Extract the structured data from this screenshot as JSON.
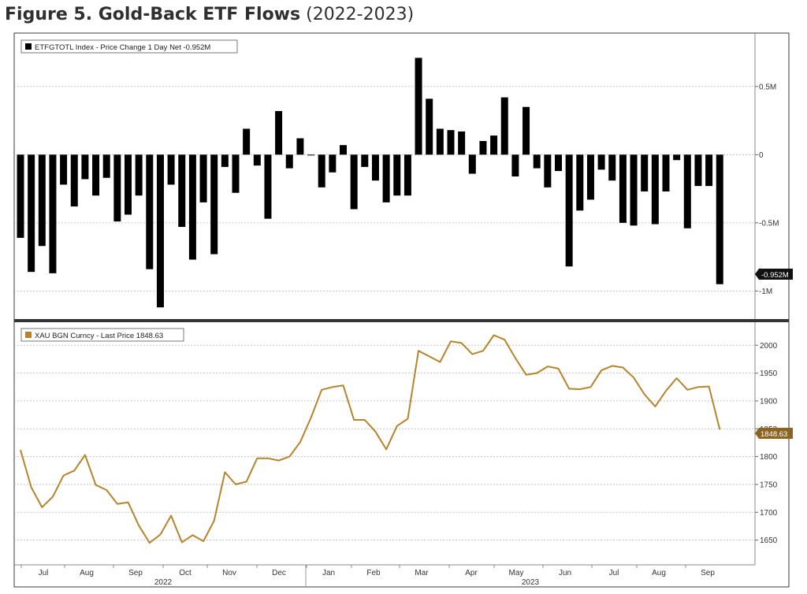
{
  "figure": {
    "title_bold": "Figure 5. Gold-Back ETF Flows",
    "title_years": "(2022-2023)"
  },
  "chart_data": [
    {
      "type": "bar",
      "legend": "ETFGTOTL Index - Price Change 1 Day Net -0.952M",
      "last_value_label": "-0.952M",
      "color": "#000000",
      "y_ticks": [
        {
          "value": 0.5,
          "label": "0.5M"
        },
        {
          "value": 0,
          "label": "0"
        },
        {
          "value": -0.5,
          "label": "-0.5M"
        },
        {
          "value": -1,
          "label": "-1M"
        }
      ],
      "ylim": [
        -1.2,
        0.88
      ],
      "grid": true,
      "legend_placement": "top-left",
      "values": [
        -0.61,
        -0.86,
        -0.67,
        -0.87,
        -0.22,
        -0.38,
        -0.18,
        -0.3,
        -0.17,
        -0.49,
        -0.44,
        -0.3,
        -0.84,
        -1.12,
        -0.22,
        -0.53,
        -0.77,
        -0.35,
        -0.73,
        -0.09,
        -0.28,
        0.19,
        -0.08,
        -0.47,
        0.32,
        -0.1,
        0.12,
        0.0,
        -0.24,
        -0.13,
        0.07,
        -0.4,
        -0.09,
        -0.19,
        -0.35,
        -0.3,
        -0.3,
        0.71,
        0.41,
        0.19,
        0.18,
        0.17,
        -0.14,
        0.1,
        0.14,
        0.42,
        -0.16,
        0.35,
        -0.1,
        -0.24,
        -0.12,
        -0.82,
        -0.41,
        -0.33,
        -0.11,
        -0.19,
        -0.5,
        -0.52,
        -0.27,
        -0.51,
        -0.27,
        -0.04,
        -0.54,
        -0.23,
        -0.23,
        -0.95
      ]
    },
    {
      "type": "line",
      "legend": "XAU BGN Curncy - Last Price 1848.63",
      "last_value_label": "1848.63",
      "color": "#b5842c",
      "y_ticks": [
        {
          "value": 2000,
          "label": "2000"
        },
        {
          "value": 1950,
          "label": "1950"
        },
        {
          "value": 1900,
          "label": "1900"
        },
        {
          "value": 1850,
          "label": "1850"
        },
        {
          "value": 1800,
          "label": "1800"
        },
        {
          "value": 1750,
          "label": "1750"
        },
        {
          "value": 1700,
          "label": "1700"
        },
        {
          "value": 1650,
          "label": "1650"
        }
      ],
      "ylim": [
        1607,
        2040
      ],
      "grid": true,
      "legend_placement": "top-left",
      "values": [
        1812,
        1745,
        1709,
        1728,
        1766,
        1775,
        1803,
        1749,
        1740,
        1715,
        1718,
        1676,
        1645,
        1660,
        1694,
        1646,
        1659,
        1648,
        1685,
        1772,
        1750,
        1755,
        1797,
        1797,
        1793,
        1800,
        1826,
        1870,
        1920,
        1925,
        1928,
        1866,
        1866,
        1845,
        1813,
        1855,
        1868,
        1990,
        1980,
        1970,
        2007,
        2004,
        1984,
        1990,
        2018,
        2010,
        1977,
        1947,
        1950,
        1962,
        1958,
        1922,
        1921,
        1925,
        1955,
        1963,
        1960,
        1942,
        1912,
        1890,
        1918,
        1941,
        1920,
        1925,
        1926,
        1848.63
      ]
    }
  ],
  "x_axis": {
    "months": [
      "Jul",
      "Aug",
      "Sep",
      "Oct",
      "Nov",
      "Dec",
      "Jan",
      "Feb",
      "Mar",
      "Apr",
      "May",
      "Jun",
      "Jul",
      "Aug",
      "Sep"
    ],
    "years": [
      "2022",
      "2023"
    ]
  }
}
